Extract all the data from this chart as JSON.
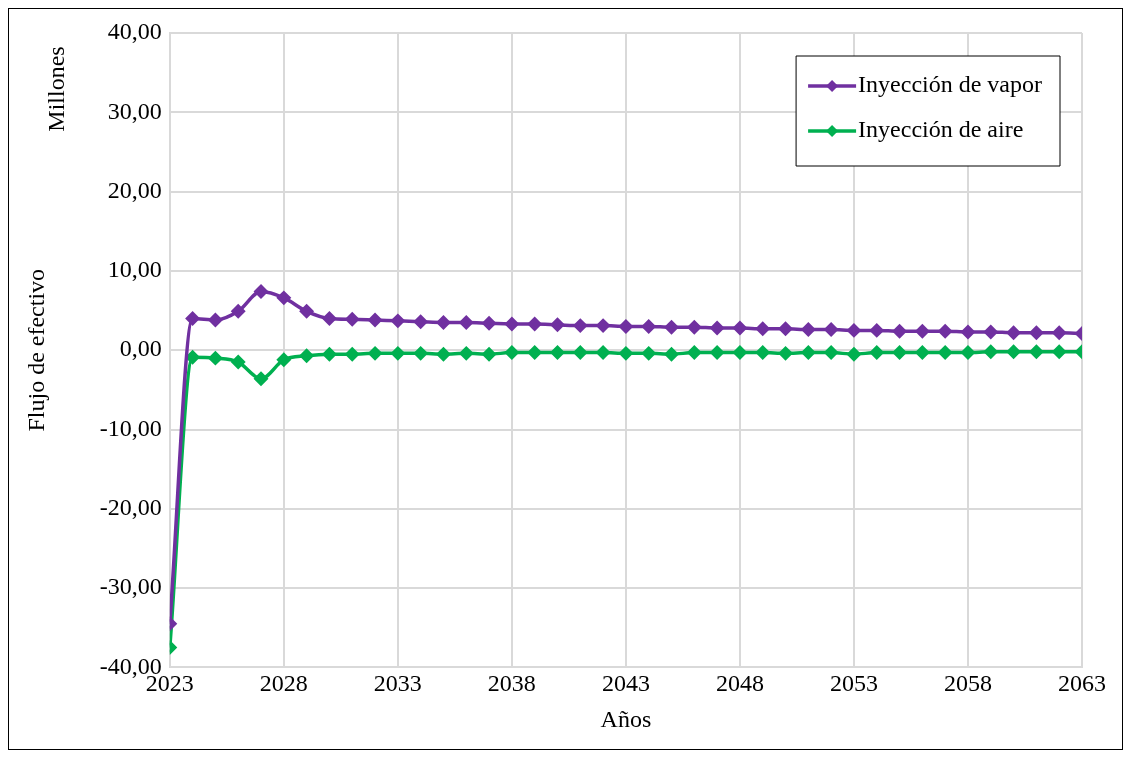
{
  "chart_data": {
    "type": "line",
    "xlabel": "Años",
    "ylabel": "Flujo de efectivo",
    "annotations": [
      "Millones"
    ],
    "x": [
      2023,
      2024,
      2025,
      2026,
      2027,
      2028,
      2029,
      2030,
      2031,
      2032,
      2033,
      2034,
      2035,
      2036,
      2037,
      2038,
      2039,
      2040,
      2041,
      2042,
      2043,
      2044,
      2045,
      2046,
      2047,
      2048,
      2049,
      2050,
      2051,
      2052,
      2053,
      2054,
      2055,
      2056,
      2057,
      2058,
      2059,
      2060,
      2061,
      2062,
      2063
    ],
    "series": [
      {
        "name": "Inyección de vapor",
        "color": "#7030a0",
        "values": [
          -34.5,
          4.0,
          3.8,
          4.9,
          7.4,
          6.6,
          4.9,
          4.0,
          3.9,
          3.8,
          3.7,
          3.6,
          3.5,
          3.5,
          3.4,
          3.3,
          3.3,
          3.2,
          3.1,
          3.1,
          3.0,
          3.0,
          2.9,
          2.9,
          2.8,
          2.8,
          2.7,
          2.7,
          2.6,
          2.6,
          2.5,
          2.5,
          2.4,
          2.4,
          2.4,
          2.3,
          2.3,
          2.2,
          2.2,
          2.2,
          2.1
        ]
      },
      {
        "name": "Inyección de aire",
        "color": "#00b050",
        "values": [
          -37.5,
          -0.9,
          -1.0,
          -1.5,
          -3.6,
          -1.2,
          -0.7,
          -0.5,
          -0.5,
          -0.4,
          -0.4,
          -0.4,
          -0.5,
          -0.4,
          -0.5,
          -0.3,
          -0.3,
          -0.3,
          -0.3,
          -0.3,
          -0.4,
          -0.4,
          -0.5,
          -0.3,
          -0.3,
          -0.3,
          -0.3,
          -0.4,
          -0.3,
          -0.3,
          -0.5,
          -0.3,
          -0.3,
          -0.3,
          -0.3,
          -0.3,
          -0.2,
          -0.2,
          -0.2,
          -0.2,
          -0.2
        ]
      }
    ],
    "xlim": [
      2023,
      2063
    ],
    "xticks": [
      2023,
      2028,
      2033,
      2038,
      2043,
      2048,
      2053,
      2058,
      2063
    ],
    "ylim": [
      -40,
      40
    ],
    "yticks": [
      {
        "value": -40,
        "label": "-40,00"
      },
      {
        "value": -30,
        "label": "-30,00"
      },
      {
        "value": -20,
        "label": "-20,00"
      },
      {
        "value": -10,
        "label": "-10,00"
      },
      {
        "value": 0,
        "label": "0,00"
      },
      {
        "value": 10,
        "label": "10,00"
      },
      {
        "value": 20,
        "label": "20,00"
      },
      {
        "value": 30,
        "label": "30,00"
      },
      {
        "value": 40,
        "label": "40,00"
      }
    ],
    "grid": true,
    "legend": "top right",
    "marker": "diamond",
    "line_style": "solid"
  }
}
